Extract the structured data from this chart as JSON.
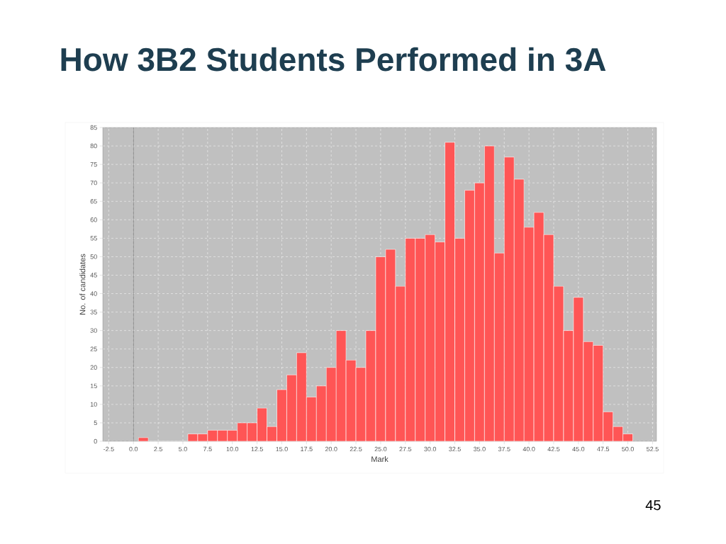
{
  "chart_data": {
    "type": "histogram",
    "title": "How 3B2 Students Performed in 3A",
    "xlabel": "Mark",
    "ylabel": "No. of candidates",
    "bins": [
      0.5,
      1.5,
      2.5,
      3.5,
      4.5,
      5.5,
      6.5,
      7.5,
      8.5,
      9.5,
      10.5,
      11.5,
      12.5,
      13.5,
      14.5,
      15.5,
      16.5,
      17.5,
      18.5,
      19.5,
      20.5,
      21.5,
      22.5,
      23.5,
      24.5,
      25.5,
      26.5,
      27.5,
      28.5,
      29.5,
      30.5,
      31.5,
      32.5,
      33.5,
      34.5,
      35.5,
      36.5,
      37.5,
      38.5,
      39.5,
      40.5,
      41.5,
      42.5,
      43.5,
      44.5,
      45.5,
      46.5,
      47.5,
      48.5,
      49.5,
      50.5
    ],
    "values": [
      1,
      0,
      0,
      0,
      0,
      2,
      2,
      3,
      3,
      3,
      5,
      5,
      9,
      4,
      14,
      18,
      24,
      12,
      15,
      20,
      30,
      22,
      20,
      30,
      50,
      52,
      42,
      55,
      55,
      56,
      54,
      81,
      55,
      68,
      70,
      80,
      51,
      77,
      71,
      58,
      62,
      56,
      42,
      30,
      39,
      27,
      26,
      8,
      4,
      2
    ],
    "color": "#ff5555",
    "xlim": [
      -3.1,
      52.9
    ],
    "ylim": [
      0,
      85
    ],
    "xticks": [
      -2.5,
      {
        "value": 0,
        "label": "0.0"
      },
      2.5,
      {
        "value": 5,
        "label": "5.0"
      },
      7.5,
      {
        "value": 10,
        "label": "10.0"
      },
      12.5,
      {
        "value": 15,
        "label": "15.0"
      },
      17.5,
      {
        "value": 20,
        "label": "20.0"
      },
      22.5,
      {
        "value": 25,
        "label": "25.0"
      },
      27.5,
      {
        "value": 30,
        "label": "30.0"
      },
      32.5,
      {
        "value": 35,
        "label": "35.0"
      },
      37.5,
      {
        "value": 40,
        "label": "40.0"
      },
      42.5,
      {
        "value": 45,
        "label": "45.0"
      },
      47.5,
      {
        "value": 50,
        "label": "50.0"
      },
      52.5
    ],
    "yticks": [
      0,
      5,
      10,
      15,
      20,
      25,
      30,
      35,
      40,
      45,
      50,
      55,
      60,
      65,
      70,
      75,
      80,
      85
    ],
    "grid": true,
    "ref_lines": [
      {
        "axis": "x",
        "value": 0,
        "color": "#555555"
      }
    ],
    "annotations": [
      "45"
    ]
  }
}
